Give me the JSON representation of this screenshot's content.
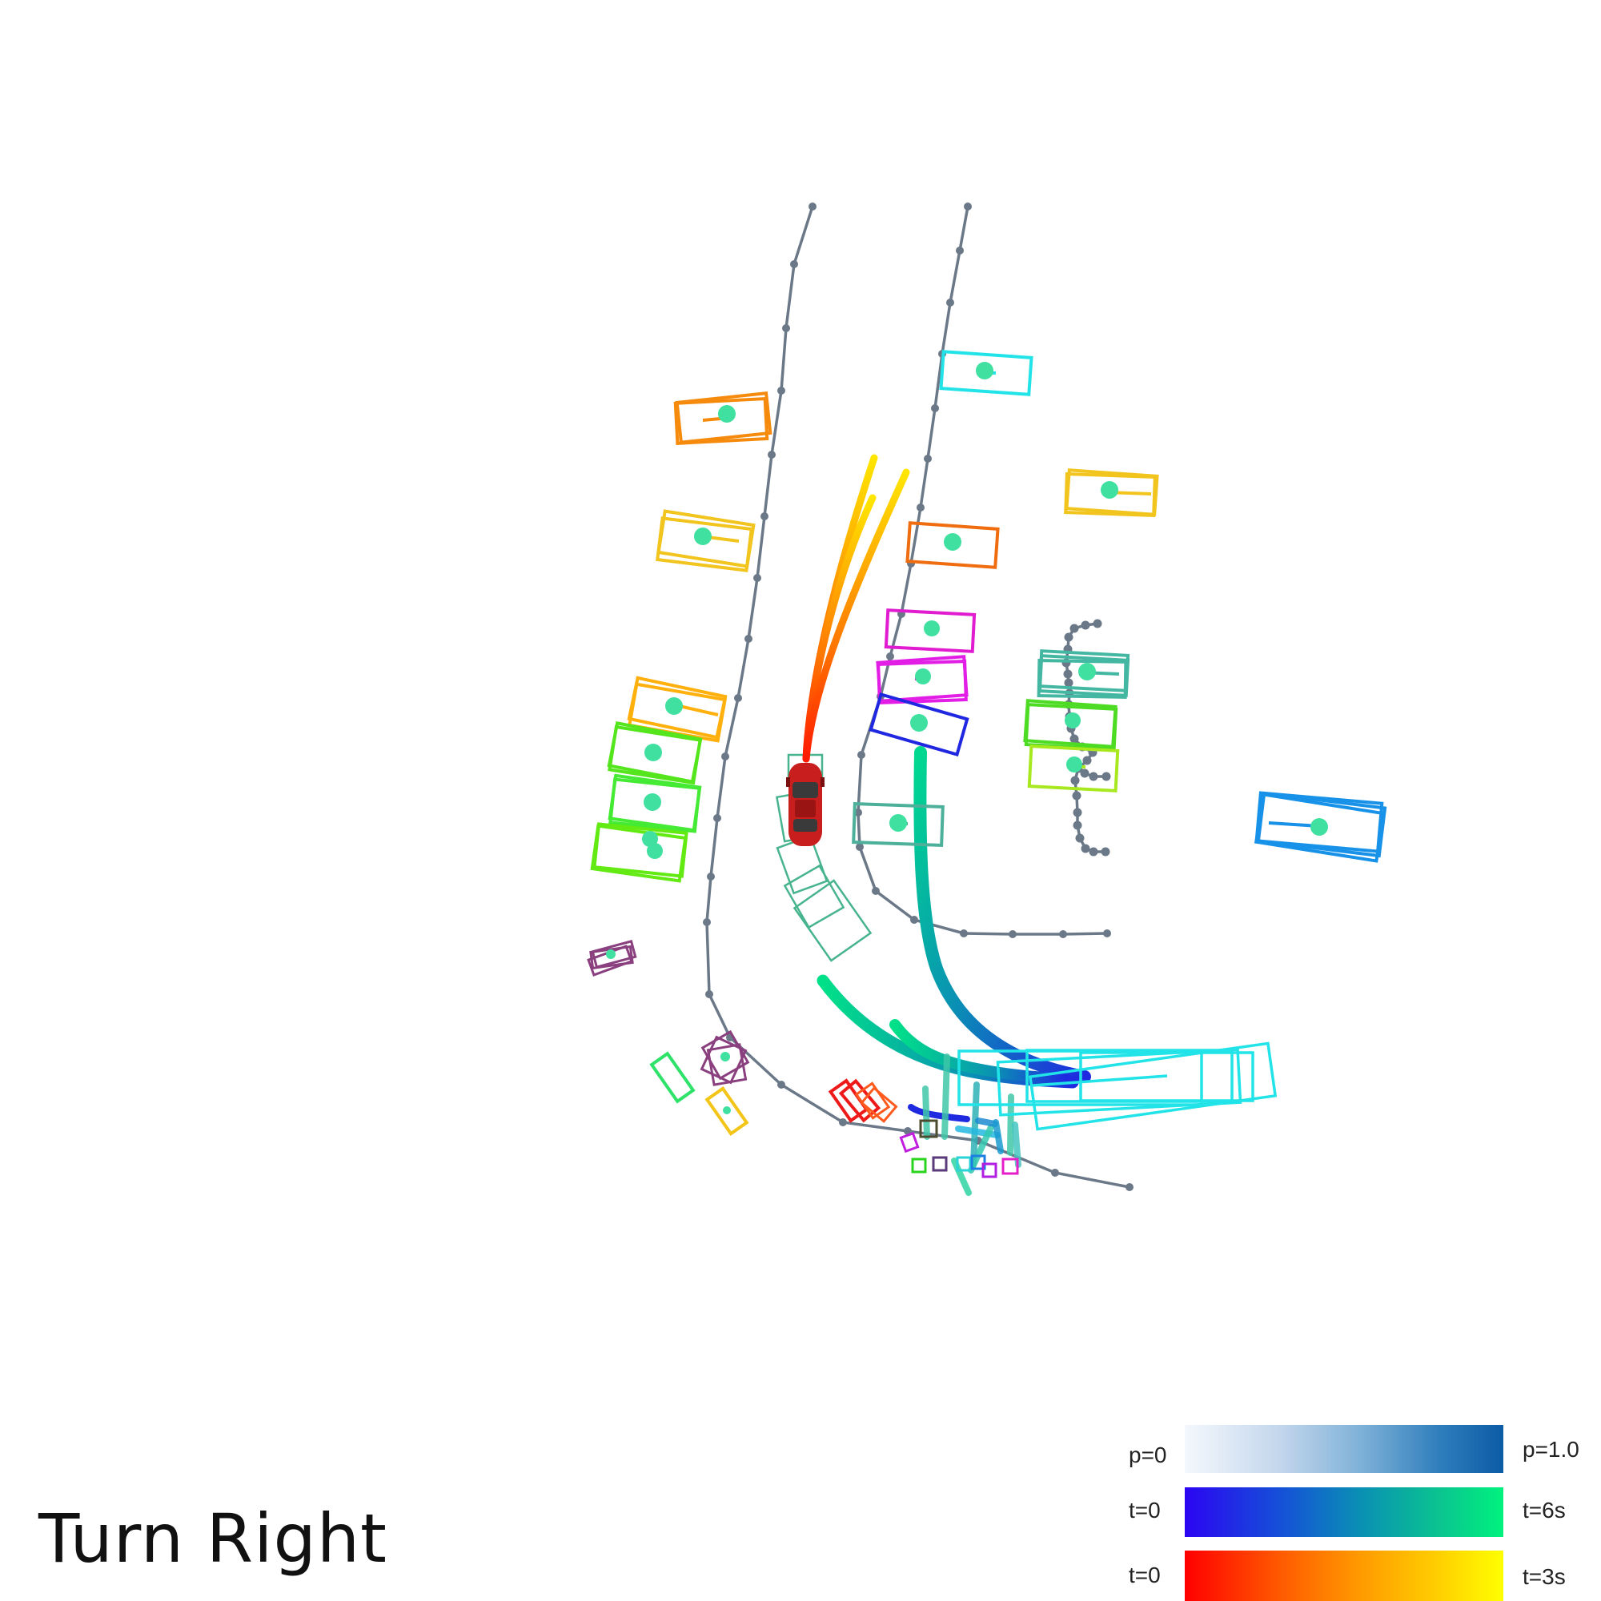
{
  "command": "Turn Right",
  "legend": {
    "prob": {
      "left": "p=0",
      "right": "p=1.0"
    },
    "agent_time": {
      "left": "t=0",
      "right": "t=6s"
    },
    "ego_time": {
      "left": "t=0",
      "right": "t=3s"
    }
  },
  "colors": {
    "lane_line": "#6b7888",
    "ego_vehicle": "#c81e1e",
    "prob_gradient": [
      "#f4f8fd",
      "#c3d6ec",
      "#7fb2d8",
      "#2f7ebc",
      "#0b5ba6"
    ],
    "agent_time_gradient": [
      "#2b05f2",
      "#1550d8",
      "#0a8fb4",
      "#0ac490",
      "#00f27e"
    ],
    "ego_time_gradient": [
      "#ff0000",
      "#ff5a00",
      "#ff9a00",
      "#ffd000",
      "#ffff00"
    ]
  },
  "icons": {
    "ego": "red-car-icon",
    "agent_marker": "teal-dot-icon"
  }
}
